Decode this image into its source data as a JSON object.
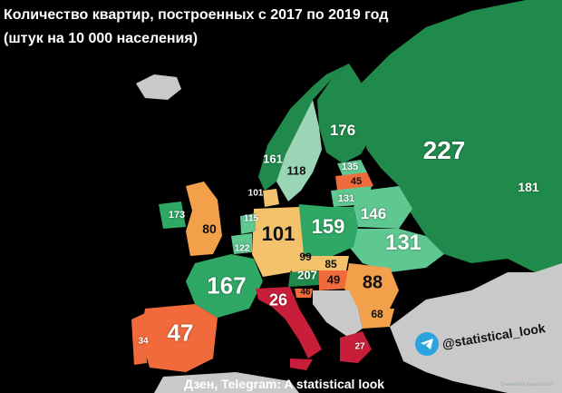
{
  "title_line1": "Количество квартир, построенных с 2017 по 2019 год",
  "title_line2": "(штук на 10 000 населения)",
  "footer": "Дзен, Telegram: A statistical look",
  "telegram_handle": "@statistical_look",
  "watermark": "Created with mapchart.net",
  "colors": {
    "sea": "#000000",
    "dark_green": "#1f8a4c",
    "green": "#2fa765",
    "light_green": "#5fc790",
    "pale_green": "#9ad6b6",
    "yellow": "#f3c26a",
    "orange": "#f2a04a",
    "red_orange": "#f06a3b",
    "red": "#c81e3a",
    "gray": "#c9c9c9"
  },
  "regions": [
    {
      "name": "Russia",
      "value": "227"
    },
    {
      "name": "Russia (Urals)",
      "value": "181"
    },
    {
      "name": "Finland",
      "value": "176"
    },
    {
      "name": "Norway",
      "value": "161"
    },
    {
      "name": "Sweden",
      "value": "118"
    },
    {
      "name": "Estonia",
      "value": "135"
    },
    {
      "name": "Latvia",
      "value": "45"
    },
    {
      "name": "Lithuania",
      "value": "131"
    },
    {
      "name": "Belarus",
      "value": "146"
    },
    {
      "name": "Ukraine",
      "value": "131"
    },
    {
      "name": "Poland",
      "value": "159"
    },
    {
      "name": "Denmark",
      "value": "101"
    },
    {
      "name": "Germany",
      "value": "101"
    },
    {
      "name": "Netherlands",
      "value": "115"
    },
    {
      "name": "Belgium",
      "value": "122"
    },
    {
      "name": "Ireland",
      "value": "173"
    },
    {
      "name": "United Kingdom",
      "value": "80"
    },
    {
      "name": "France",
      "value": "167"
    },
    {
      "name": "Czechia",
      "value": "99"
    },
    {
      "name": "Slovakia",
      "value": "85"
    },
    {
      "name": "Austria",
      "value": "207"
    },
    {
      "name": "Hungary",
      "value": "49"
    },
    {
      "name": "Slovenia",
      "value": "46"
    },
    {
      "name": "Romania",
      "value": "88"
    },
    {
      "name": "Bulgaria",
      "value": "68"
    },
    {
      "name": "Italy",
      "value": "26"
    },
    {
      "name": "Spain",
      "value": "47"
    },
    {
      "name": "Portugal",
      "value": "34"
    },
    {
      "name": "Greece",
      "value": "27"
    }
  ]
}
